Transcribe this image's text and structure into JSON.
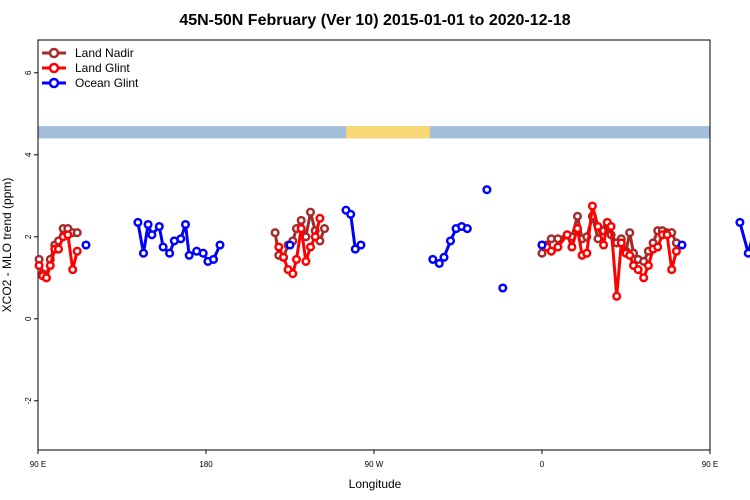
{
  "chart_data": {
    "type": "line",
    "title": "45N-50N February (Ver 10)   2015-01-01 to 2020-12-18",
    "xlabel": "Longitude",
    "ylabel": "XCO2 - MLO trend (ppm)",
    "xlim": [
      90,
      450
    ],
    "ylim": [
      -3.2,
      6.8
    ],
    "x_ticks": [
      {
        "value": 90,
        "label": "90 E"
      },
      {
        "value": 180,
        "label": "180"
      },
      {
        "value": 270,
        "label": "90 W"
      },
      {
        "value": 360,
        "label": "0"
      },
      {
        "value": 450,
        "label": "90 E"
      },
      {
        "value": 540,
        "label": "180"
      }
    ],
    "y_ticks": [
      {
        "value": -2,
        "label": "-2"
      },
      {
        "value": 0,
        "label": "0"
      },
      {
        "value": 2,
        "label": "2"
      },
      {
        "value": 4,
        "label": "4"
      },
      {
        "value": 6,
        "label": "6"
      }
    ],
    "legend_position": "top-left",
    "land_band": {
      "y_from": 4.4,
      "y_to": 4.7,
      "land_color": "#f8d776",
      "ocean_color": "#a4bddb",
      "land_ranges": [
        [
          0,
          45
        ],
        [
          255,
          300
        ],
        [
          490,
          570
        ],
        [
          620,
          655
        ]
      ]
    },
    "series": [
      {
        "name": "Land Nadir",
        "color": "#a52a2a",
        "segments": [
          [
            [
              90.6,
              1.45
            ],
            [
              92.5,
              1.1
            ],
            [
              94.5,
              1.0
            ],
            [
              96.6,
              1.45
            ],
            [
              99,
              1.8
            ],
            [
              101,
              1.9
            ],
            [
              103.5,
              2.2
            ],
            [
              106,
              2.2
            ],
            [
              108.6,
              2.1
            ],
            [
              111,
              2.1
            ]
          ],
          [
            [
              217,
              2.1
            ],
            [
              219,
              1.55
            ],
            [
              221.5,
              1.5
            ],
            [
              224,
              1.8
            ],
            [
              226.5,
              1.9
            ],
            [
              228.5,
              2.2
            ],
            [
              231,
              2.4
            ],
            [
              233.5,
              2.0
            ],
            [
              236,
              2.6
            ],
            [
              238.5,
              2.15
            ],
            [
              241,
              1.9
            ],
            [
              243.5,
              2.2
            ]
          ],
          [
            [
              360,
              1.6
            ],
            [
              362.5,
              1.8
            ],
            [
              365,
              1.95
            ],
            [
              368.5,
              1.95
            ],
            [
              373.5,
              2.05
            ],
            [
              376,
              2.0
            ],
            [
              379,
              2.5
            ],
            [
              381.5,
              1.95
            ],
            [
              384,
              2.0
            ],
            [
              387,
              2.5
            ],
            [
              390,
              1.95
            ],
            [
              393,
              2.15
            ],
            [
              395,
              2.25
            ],
            [
              397,
              2.05
            ],
            [
              400,
              1.85
            ],
            [
              402.5,
              1.95
            ],
            [
              405,
              1.65
            ],
            [
              407,
              2.1
            ],
            [
              409,
              1.6
            ],
            [
              411.5,
              1.45
            ],
            [
              414.5,
              1.4
            ],
            [
              417,
              1.65
            ],
            [
              419.5,
              1.85
            ],
            [
              422,
              2.15
            ],
            [
              424.5,
              2.15
            ],
            [
              427,
              2.1
            ],
            [
              429.5,
              2.1
            ],
            [
              432,
              1.85
            ]
          ]
        ]
      },
      {
        "name": "Land Glint",
        "color": "#ff0000",
        "segments": [
          [
            [
              90.6,
              1.3
            ],
            [
              92.5,
              1.05
            ],
            [
              94.5,
              1.0
            ],
            [
              96.6,
              1.3
            ],
            [
              99,
              1.7
            ],
            [
              101,
              1.7
            ],
            [
              103.5,
              2.0
            ],
            [
              106,
              2.05
            ],
            [
              108.6,
              1.2
            ],
            [
              111,
              1.65
            ]
          ],
          [
            [
              219,
              1.75
            ],
            [
              221.5,
              1.5
            ],
            [
              224,
              1.2
            ],
            [
              226.5,
              1.1
            ],
            [
              228.5,
              1.45
            ],
            [
              231,
              2.2
            ],
            [
              233.5,
              1.4
            ],
            [
              236,
              1.75
            ],
            [
              238.5,
              2.0
            ],
            [
              241,
              2.45
            ]
          ],
          [
            [
              360,
              1.8
            ],
            [
              362.5,
              1.75
            ],
            [
              365,
              1.65
            ],
            [
              368.5,
              1.75
            ],
            [
              373.5,
              2.05
            ],
            [
              376,
              1.75
            ],
            [
              379,
              2.2
            ],
            [
              381.5,
              1.55
            ],
            [
              384,
              1.6
            ],
            [
              387,
              2.75
            ],
            [
              390,
              2.25
            ],
            [
              393,
              1.8
            ],
            [
              395,
              2.35
            ],
            [
              397,
              2.25
            ],
            [
              400,
              0.55
            ],
            [
              402.5,
              1.85
            ],
            [
              405,
              1.6
            ],
            [
              407,
              1.55
            ],
            [
              409,
              1.3
            ],
            [
              411.5,
              1.2
            ],
            [
              414.5,
              1.0
            ],
            [
              417,
              1.3
            ],
            [
              419.5,
              1.7
            ],
            [
              422,
              1.75
            ],
            [
              424.5,
              2.05
            ],
            [
              427,
              2.05
            ],
            [
              429.5,
              1.2
            ],
            [
              432,
              1.65
            ]
          ]
        ]
      },
      {
        "name": "Ocean Glint",
        "color": "#0000ff",
        "segments": [
          [
            [
              115.7,
              1.8
            ]
          ],
          [
            [
              143.5,
              2.35
            ],
            [
              146.5,
              1.6
            ],
            [
              149,
              2.3
            ],
            [
              151,
              2.05
            ],
            [
              155,
              2.25
            ],
            [
              157,
              1.75
            ],
            [
              160.5,
              1.6
            ],
            [
              163,
              1.9
            ],
            [
              166.5,
              1.95
            ],
            [
              169,
              2.3
            ],
            [
              171,
              1.55
            ],
            [
              175,
              1.65
            ],
            [
              178.5,
              1.6
            ],
            [
              181,
              1.4
            ],
            [
              184,
              1.45
            ],
            [
              187.5,
              1.8
            ]
          ],
          [
            [
              225,
              1.8
            ]
          ],
          [
            [
              255,
              2.65
            ],
            [
              257.5,
              2.55
            ],
            [
              260,
              1.7
            ],
            [
              263,
              1.8
            ]
          ],
          [
            [
              301.5,
              1.45
            ],
            [
              305,
              1.35
            ],
            [
              307.5,
              1.5
            ],
            [
              311,
              1.9
            ],
            [
              314,
              2.2
            ],
            [
              317,
              2.25
            ],
            [
              320,
              2.2
            ]
          ],
          [
            [
              330.5,
              3.15
            ]
          ],
          [
            [
              339,
              0.75
            ]
          ],
          [
            [
              360,
              1.8
            ]
          ],
          [
            [
              435,
              1.8
            ]
          ],
          [
            [
              466,
              2.35
            ],
            [
              470.5,
              1.6
            ],
            [
              474.5,
              2.3
            ],
            [
              477,
              2.05
            ],
            [
              480,
              2.25
            ]
          ]
        ]
      }
    ]
  }
}
